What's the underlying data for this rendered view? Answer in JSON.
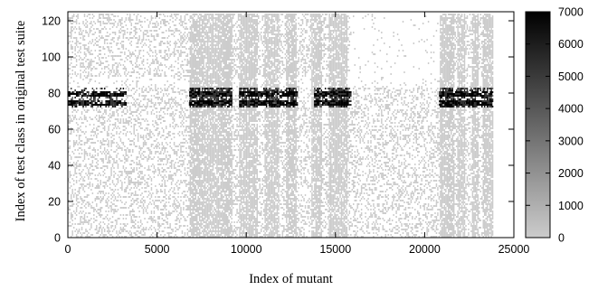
{
  "chart_data": {
    "type": "heatmap",
    "title": "",
    "xlabel": "Index of mutant",
    "ylabel": "Index of test class in original test suite",
    "xlim": [
      0,
      25000
    ],
    "ylim": [
      0,
      125
    ],
    "x_ticks": [
      0,
      5000,
      10000,
      15000,
      20000,
      25000
    ],
    "x_tick_labels": [
      "0",
      "5000",
      "10000",
      "15000",
      "20000",
      "25000"
    ],
    "y_ticks": [
      0,
      20,
      40,
      60,
      80,
      100,
      120
    ],
    "y_tick_labels": [
      "0",
      "20",
      "40",
      "60",
      "80",
      "100",
      "120"
    ],
    "colorbar": {
      "range": [
        0,
        7000
      ],
      "ticks": [
        0,
        1000,
        2000,
        3000,
        4000,
        5000,
        6000,
        7000
      ],
      "tick_labels": [
        "0",
        "1000",
        "2000",
        "3000",
        "4000",
        "5000",
        "6000",
        "7000"
      ],
      "color_low": "#cccccc",
      "color_high": "#000000"
    },
    "data_x_range": [
      0,
      23800
    ],
    "data_y_range": [
      0,
      124
    ],
    "dense_column_bands": [
      [
        6800,
        9200
      ],
      [
        9600,
        10600
      ],
      [
        11000,
        11800
      ],
      [
        12200,
        12800
      ],
      [
        13600,
        14200
      ],
      [
        14600,
        15600
      ],
      [
        20800,
        21600
      ],
      [
        21800,
        22200
      ],
      [
        22600,
        23000
      ],
      [
        23200,
        23800
      ]
    ],
    "dense_row_band": {
      "y_range": [
        72,
        82
      ],
      "x_ranges": [
        [
          0,
          3200
        ],
        [
          6800,
          9200
        ],
        [
          9600,
          12800
        ],
        [
          13800,
          15800
        ],
        [
          20800,
          23800
        ]
      ]
    },
    "upper_sparse_region": {
      "x_range": [
        15800,
        20800
      ],
      "y_range": [
        85,
        124
      ]
    }
  }
}
